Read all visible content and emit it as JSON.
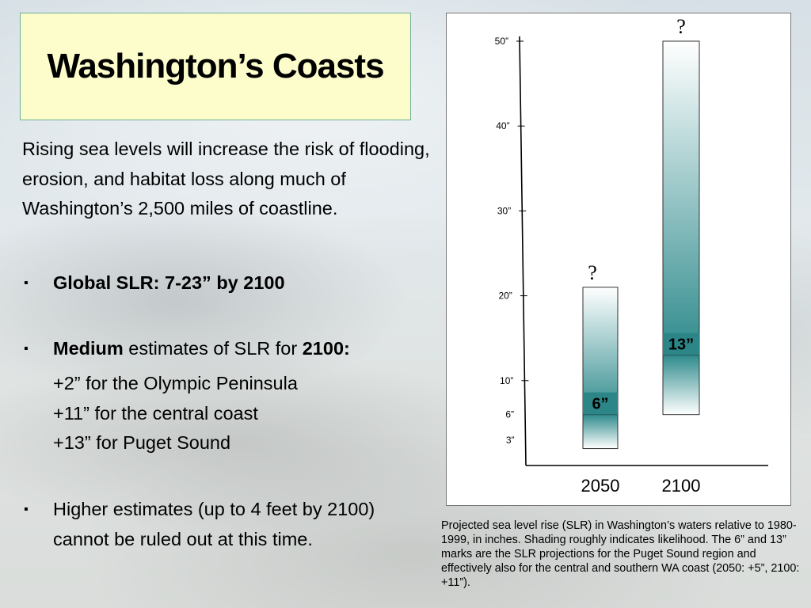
{
  "slide": {
    "title": "Washington’s Coasts",
    "intro": "Rising sea levels will increase the risk of flooding, erosion, and habitat loss along much of Washington’s  2,500 miles of coastline.",
    "bullets": [
      {
        "bold": "Global SLR: 7-23” by 2100",
        "rest": ""
      },
      {
        "bold_lead": "Medium",
        "middle": " estimates of SLR for ",
        "bold_tail": "2100:"
      },
      {
        "text": "Higher estimates (up to 4 feet by 2100) cannot be ruled out at this time."
      }
    ],
    "medium_estimates": [
      "+2” for the Olympic Peninsula",
      "+11” for the central coast",
      "+13” for  Puget Sound"
    ],
    "bullet_symbol": "▪",
    "caption": "Projected sea level rise (SLR) in Washington’s waters relative to 1980-1999, in inches. Shading roughly indicates likelihood. The 6” and 13” marks are the SLR projections for the Puget Sound region and effectively also for the central and southern WA coast (2050: +5”, 2100: +11”)."
  },
  "chart_data": {
    "type": "bar",
    "categories": [
      "2050",
      "2100"
    ],
    "ylim": [
      0,
      50
    ],
    "ytick_labels": [
      {
        "value": 50,
        "label": "50”"
      },
      {
        "value": 40,
        "label": "40”"
      },
      {
        "value": 30,
        "label": "30”"
      },
      {
        "value": 20,
        "label": "20”"
      },
      {
        "value": 10,
        "label": "10”"
      },
      {
        "value": 6,
        "label": "6”"
      },
      {
        "value": 3,
        "label": "3”"
      }
    ],
    "bars": [
      {
        "category": "2050",
        "low": 2,
        "high": 21,
        "projection": 6,
        "projection_label": "6”",
        "top_marker": "?"
      },
      {
        "category": "2100",
        "low": 6,
        "high": 50,
        "projection": 13,
        "projection_label": "13”",
        "top_marker": "?"
      }
    ],
    "colors": {
      "shade": "#2e8a8c",
      "label_bg": "#2c8687",
      "axis": "#000000"
    }
  }
}
